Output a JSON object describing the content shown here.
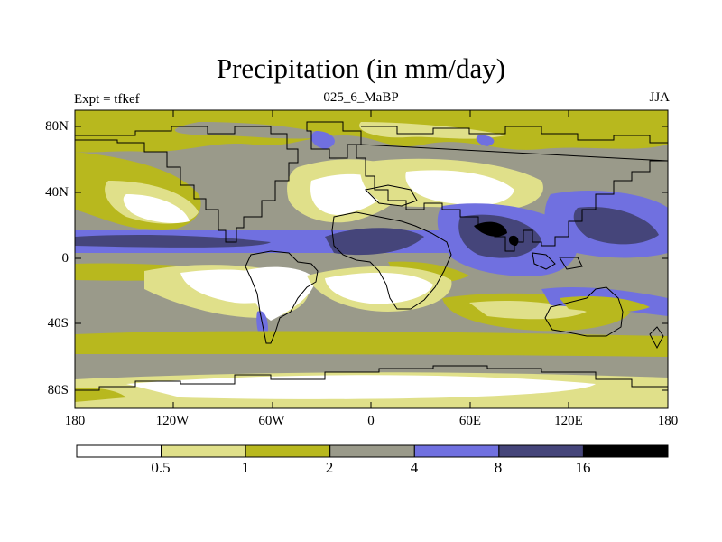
{
  "title": "Precipitation (in mm/day)",
  "left_label": "Expt = tfkef",
  "center_label": "025_6_MaBP",
  "right_label": "JJA",
  "y_ticks": [
    "80N",
    "40N",
    "0",
    "40S",
    "80S"
  ],
  "x_ticks": [
    "180",
    "120W",
    "60W",
    "0",
    "60E",
    "120E",
    "180"
  ],
  "colorbar": {
    "labels": [
      "0.5",
      "1",
      "2",
      "4",
      "8",
      "16"
    ],
    "colors": [
      "#ffffff",
      "#e0e08a",
      "#b8b81e",
      "#9a9a8a",
      "#7070e0",
      "#45457a",
      "#000000"
    ]
  }
}
